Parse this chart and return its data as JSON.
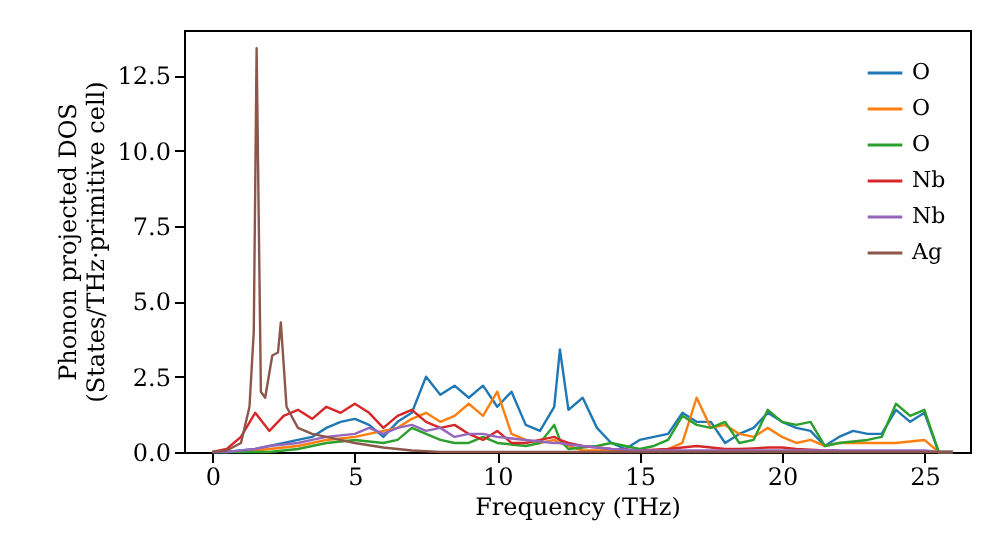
{
  "chart_data": {
    "type": "line",
    "xlabel": "Frequency (THz)",
    "ylabel": "Phonon projected DOS\n(States/THz·primitive cell)",
    "x": [
      0,
      0.5,
      1,
      1.5,
      2,
      2.5,
      3,
      3.5,
      4,
      4.5,
      5,
      5.5,
      6,
      6.5,
      7,
      7.5,
      8,
      8.5,
      9,
      9.5,
      10,
      10.5,
      11,
      11.5,
      12,
      12.2,
      12.5,
      13,
      13.5,
      14,
      14.5,
      15,
      15.5,
      16,
      16.5,
      17,
      17.5,
      18,
      18.5,
      19,
      19.5,
      20,
      20.5,
      21,
      21.5,
      22,
      22.5,
      23,
      23.5,
      24,
      24.5,
      25,
      25.5,
      26
    ],
    "xlim": [
      -1,
      26.6
    ],
    "ylim": [
      0,
      14
    ],
    "xticks": [
      0,
      5,
      10,
      15,
      20,
      25
    ],
    "yticks": [
      {
        "value": 0,
        "label": "0.0"
      },
      {
        "value": 2.5,
        "label": "2.5"
      },
      {
        "value": 5,
        "label": "5.0"
      },
      {
        "value": 7.5,
        "label": "7.5"
      },
      {
        "value": 10,
        "label": "10.0"
      },
      {
        "value": 12.5,
        "label": "12.5"
      }
    ],
    "grid": false,
    "legend": "top right",
    "line_style": "solid",
    "marker": "none",
    "series": [
      {
        "name": "O",
        "color": "#1f77b4",
        "values": [
          0,
          0,
          0.05,
          0.1,
          0.2,
          0.3,
          0.4,
          0.5,
          0.8,
          1.0,
          1.1,
          0.9,
          0.5,
          1.0,
          1.3,
          2.5,
          1.9,
          2.2,
          1.8,
          2.2,
          1.5,
          2.0,
          0.9,
          0.7,
          1.5,
          3.4,
          1.4,
          1.8,
          0.8,
          0.3,
          0.1,
          0.4,
          0.5,
          0.6,
          1.3,
          1.0,
          1.0,
          0.3,
          0.6,
          0.8,
          1.3,
          1.0,
          0.8,
          0.7,
          0.2,
          0.5,
          0.7,
          0.6,
          0.6,
          1.4,
          1.0,
          1.3,
          0,
          0
        ]
      },
      {
        "name": "O",
        "color": "#ff7f0e",
        "values": [
          null,
          null,
          0,
          0.05,
          0.1,
          0.15,
          0.2,
          0.3,
          0.4,
          0.45,
          0.5,
          0.6,
          0.7,
          0.8,
          1.1,
          1.3,
          1.0,
          1.2,
          1.6,
          1.2,
          2.0,
          0.6,
          0.4,
          0.3,
          0.4,
          0.3,
          0.2,
          0.05,
          0.05,
          0.05,
          0.05,
          0.05,
          0.05,
          0.1,
          0.3,
          1.8,
          0.8,
          0.9,
          0.6,
          0.5,
          0.8,
          0.5,
          0.3,
          0.4,
          0.2,
          0.3,
          0.3,
          0.3,
          0.3,
          0.3,
          0.35,
          0.4,
          0,
          0
        ]
      },
      {
        "name": "O",
        "color": "#2ca02c",
        "values": [
          0,
          0,
          0,
          0,
          0,
          0.05,
          0.1,
          0.2,
          0.3,
          0.35,
          0.4,
          0.35,
          0.3,
          0.4,
          0.8,
          0.6,
          0.4,
          0.3,
          0.3,
          0.5,
          0.3,
          0.25,
          0.2,
          0.3,
          0.9,
          0.4,
          0.1,
          0.15,
          0.2,
          0.3,
          0.2,
          0.1,
          0.2,
          0.4,
          1.2,
          0.9,
          0.8,
          1.0,
          0.3,
          0.4,
          1.4,
          1.0,
          0.9,
          1.0,
          0.2,
          0.3,
          0.35,
          0.4,
          0.5,
          1.6,
          1.2,
          1.4,
          0,
          0
        ]
      },
      {
        "name": "Nb",
        "color": "#d62728",
        "values": [
          0,
          0.1,
          0.5,
          1.3,
          0.7,
          1.2,
          1.4,
          1.1,
          1.5,
          1.3,
          1.6,
          1.3,
          0.8,
          1.2,
          1.4,
          1.0,
          0.8,
          0.9,
          0.6,
          0.4,
          0.7,
          0.3,
          0.3,
          0.4,
          0.5,
          0.4,
          0.3,
          0.2,
          0.15,
          0.1,
          0.08,
          0.05,
          0.08,
          0.1,
          0.15,
          0.2,
          0.15,
          0.1,
          0.1,
          0.12,
          0.15,
          0.15,
          0.1,
          0.08,
          0.05,
          0.05,
          null,
          null,
          null,
          null,
          null,
          null,
          null,
          null
        ]
      },
      {
        "name": "Nb",
        "color": "#9467bd",
        "values": [
          0,
          0,
          0.05,
          0.1,
          0.2,
          0.25,
          0.3,
          0.4,
          0.5,
          0.55,
          0.6,
          0.8,
          0.6,
          0.8,
          0.9,
          0.7,
          0.8,
          0.5,
          0.6,
          0.6,
          0.5,
          0.45,
          0.4,
          0.35,
          0.3,
          0.3,
          0.25,
          0.2,
          0.15,
          0.1,
          0.08,
          0.05,
          0.05,
          0.05,
          0.05,
          0.05,
          0.05,
          0.05,
          0.05,
          0.05,
          0.05,
          0.05,
          0.05,
          0.05,
          0.05,
          0.05,
          0.05,
          0.05,
          0.05,
          0.05,
          0.05,
          0.05,
          0,
          0
        ]
      },
      {
        "name": "Ag",
        "color": "#8c564b",
        "x": [
          0,
          0.5,
          1,
          1.3,
          1.45,
          1.55,
          1.7,
          1.85,
          2.1,
          2.3,
          2.4,
          2.6,
          3,
          3.5,
          4,
          5,
          6,
          7,
          8,
          10,
          15,
          20,
          25,
          26
        ],
        "values": [
          0,
          0.05,
          0.3,
          1.5,
          4,
          13.4,
          2.0,
          1.8,
          3.2,
          3.3,
          4.3,
          1.5,
          0.8,
          0.6,
          0.5,
          0.3,
          0.15,
          0.05,
          0,
          0,
          0,
          0,
          0,
          0
        ]
      }
    ]
  }
}
